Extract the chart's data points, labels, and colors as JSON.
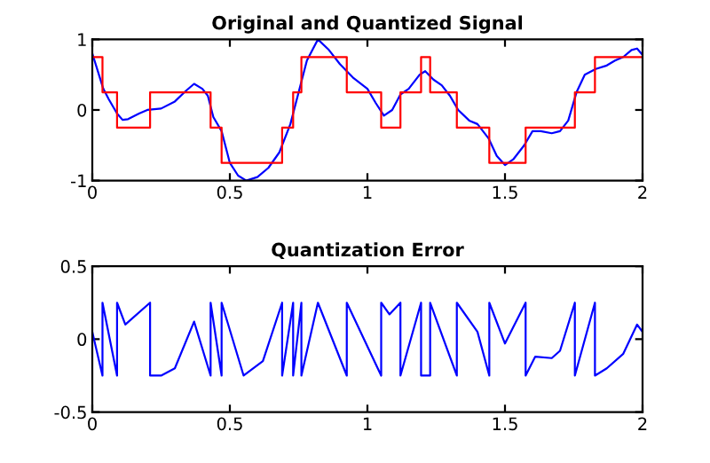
{
  "chart_data": [
    {
      "type": "line",
      "title": "Original and Quantized Signal",
      "xlim": [
        0,
        2
      ],
      "xticks": [
        0,
        0.5,
        1,
        1.5,
        2
      ],
      "ylim": [
        -1,
        1
      ],
      "yticks": [
        -1,
        0,
        1
      ],
      "series": [
        {
          "color": "#0000ff",
          "x": [
            0,
            0.02,
            0.04,
            0.06,
            0.09,
            0.11,
            0.13,
            0.17,
            0.2,
            0.25,
            0.3,
            0.34,
            0.37,
            0.4,
            0.42,
            0.44,
            0.47,
            0.5,
            0.53,
            0.56,
            0.6,
            0.64,
            0.68,
            0.72,
            0.75,
            0.78,
            0.82,
            0.86,
            0.9,
            0.95,
            1.0,
            1.03,
            1.06,
            1.09,
            1.12,
            1.15,
            1.19,
            1.21,
            1.24,
            1.27,
            1.3,
            1.33,
            1.37,
            1.4,
            1.44,
            1.47,
            1.5,
            1.53,
            1.57,
            1.6,
            1.63,
            1.67,
            1.7,
            1.73,
            1.76,
            1.79,
            1.83,
            1.87,
            1.9,
            1.93,
            1.96,
            1.98,
            2.0
          ],
          "values": [
            0.8,
            0.55,
            0.3,
            0.15,
            -0.05,
            -0.14,
            -0.13,
            -0.05,
            0.0,
            0.02,
            0.12,
            0.27,
            0.37,
            0.3,
            0.2,
            -0.1,
            -0.3,
            -0.75,
            -0.93,
            -1.0,
            -0.95,
            -0.82,
            -0.6,
            -0.2,
            0.25,
            0.7,
            1.0,
            0.85,
            0.65,
            0.45,
            0.3,
            0.1,
            -0.08,
            0.0,
            0.22,
            0.3,
            0.5,
            0.55,
            0.43,
            0.35,
            0.2,
            0.0,
            -0.15,
            -0.2,
            -0.4,
            -0.65,
            -0.78,
            -0.7,
            -0.5,
            -0.3,
            -0.3,
            -0.33,
            -0.3,
            -0.15,
            0.25,
            0.5,
            0.58,
            0.63,
            0.7,
            0.75,
            0.85,
            0.87,
            0.78
          ]
        },
        {
          "type": "step",
          "color": "#ff0000",
          "x": [
            0,
            0.037,
            0.09,
            0.21,
            0.43,
            0.47,
            0.69,
            0.73,
            0.76,
            0.925,
            1.05,
            1.12,
            1.195,
            1.228,
            1.325,
            1.443,
            1.575,
            1.754,
            1.827,
            2.0
          ],
          "values": [
            0.75,
            0.25,
            -0.25,
            0.25,
            -0.25,
            -0.75,
            -0.25,
            0.25,
            0.75,
            0.25,
            -0.25,
            0.25,
            0.75,
            0.25,
            -0.25,
            -0.75,
            -0.25,
            0.25,
            0.75,
            0.75
          ]
        }
      ]
    },
    {
      "type": "line",
      "title": "Quantization Error",
      "xlim": [
        0,
        2
      ],
      "xticks": [
        0,
        0.5,
        1,
        1.5,
        2
      ],
      "ylim": [
        -0.5,
        0.5
      ],
      "yticks": [
        -0.5,
        0,
        0.5
      ],
      "series": [
        {
          "color": "#0000ff",
          "x": [
            0,
            0.037,
            0.037,
            0.09,
            0.09,
            0.12,
            0.21,
            0.21,
            0.25,
            0.3,
            0.37,
            0.43,
            0.43,
            0.47,
            0.47,
            0.55,
            0.62,
            0.69,
            0.69,
            0.73,
            0.73,
            0.76,
            0.76,
            0.82,
            0.925,
            0.925,
            1.05,
            1.05,
            1.08,
            1.12,
            1.12,
            1.195,
            1.195,
            1.228,
            1.228,
            1.325,
            1.325,
            1.4,
            1.443,
            1.443,
            1.5,
            1.575,
            1.575,
            1.61,
            1.67,
            1.7,
            1.754,
            1.754,
            1.827,
            1.827,
            1.87,
            1.93,
            1.98,
            2.0
          ],
          "values": [
            0.05,
            -0.25,
            0.25,
            -0.25,
            0.25,
            0.1,
            0.25,
            -0.25,
            -0.25,
            -0.2,
            0.12,
            -0.25,
            0.25,
            -0.25,
            0.25,
            -0.25,
            -0.15,
            0.25,
            -0.25,
            0.25,
            -0.25,
            0.25,
            -0.25,
            0.25,
            -0.25,
            0.25,
            -0.25,
            0.25,
            0.17,
            0.25,
            -0.25,
            0.25,
            -0.25,
            -0.25,
            0.25,
            -0.25,
            0.25,
            0.05,
            -0.25,
            0.25,
            -0.03,
            0.25,
            -0.25,
            -0.12,
            -0.13,
            -0.08,
            0.25,
            -0.25,
            0.25,
            -0.25,
            -0.2,
            -0.1,
            0.1,
            0.05
          ]
        }
      ]
    }
  ]
}
